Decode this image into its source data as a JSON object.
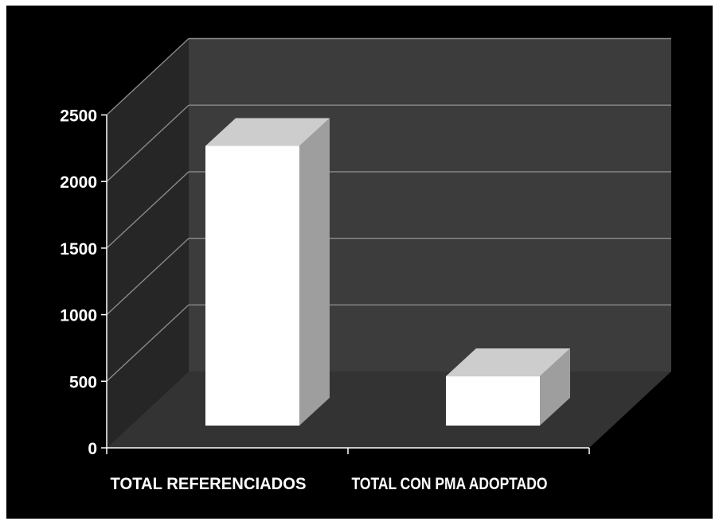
{
  "chart_data": {
    "type": "bar",
    "categories": [
      "TOTAL REFERENCIADOS",
      "TOTAL CON PMA ADOPTADO"
    ],
    "values": [
      2100,
      370
    ],
    "ylim": [
      0,
      2500
    ],
    "yticks": [
      0,
      500,
      1000,
      1500,
      2000,
      2500
    ],
    "ytick_labels": [
      "0",
      "500",
      "1000",
      "1500",
      "2000",
      "2500"
    ],
    "grid": true,
    "legend": "none",
    "colors": {
      "background": "#000000",
      "back_wall": "#3c3c3c",
      "side_wall": "#262626",
      "floor": "#333333",
      "gridline": "#8a8a8a",
      "bar_front": "#ffffff",
      "bar_top": "#cdcdcd",
      "bar_side": "#9e9e9e"
    }
  }
}
